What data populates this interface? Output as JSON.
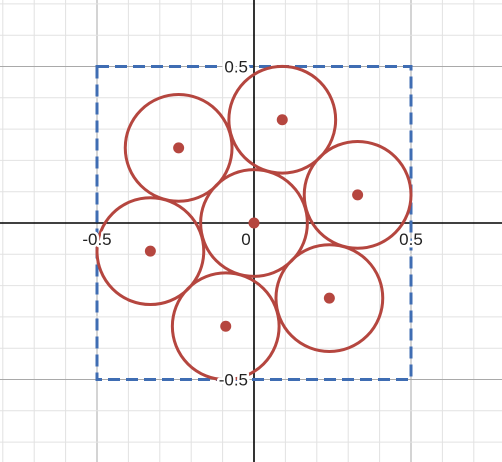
{
  "chart_data": {
    "type": "scatter",
    "title": "",
    "xlabel": "",
    "ylabel": "",
    "xlim": [
      -0.81,
      0.8
    ],
    "ylim": [
      -0.75,
      0.72
    ],
    "grid": true,
    "minor_grid_step": 0.1,
    "major_grid_step": 0.5,
    "x_ticks": [
      {
        "value": -0.5,
        "label": "-0.5"
      },
      {
        "value": 0,
        "label": "0"
      },
      {
        "value": 0.5,
        "label": "0.5"
      }
    ],
    "y_ticks": [
      {
        "value": 0.5,
        "label": "0.5"
      },
      {
        "value": -0.5,
        "label": "-0.5"
      }
    ],
    "bounding_square": {
      "x_min": -0.5,
      "x_max": 0.5,
      "y_min": -0.5,
      "y_max": 0.5,
      "style": "dashed"
    },
    "circle_radius": 0.17,
    "circles": [
      {
        "x": 0.0,
        "y": 0.0
      },
      {
        "x": 0.09,
        "y": 0.33
      },
      {
        "x": -0.24,
        "y": 0.24
      },
      {
        "x": 0.33,
        "y": 0.09
      },
      {
        "x": -0.33,
        "y": -0.09
      },
      {
        "x": 0.24,
        "y": -0.24
      },
      {
        "x": -0.09,
        "y": -0.33
      }
    ],
    "colors": {
      "circle": "#b5463f",
      "square": "#3f6db3",
      "axis": "#000000",
      "grid_minor": "#e2e2e2",
      "grid_major": "#a9a9a9"
    }
  }
}
